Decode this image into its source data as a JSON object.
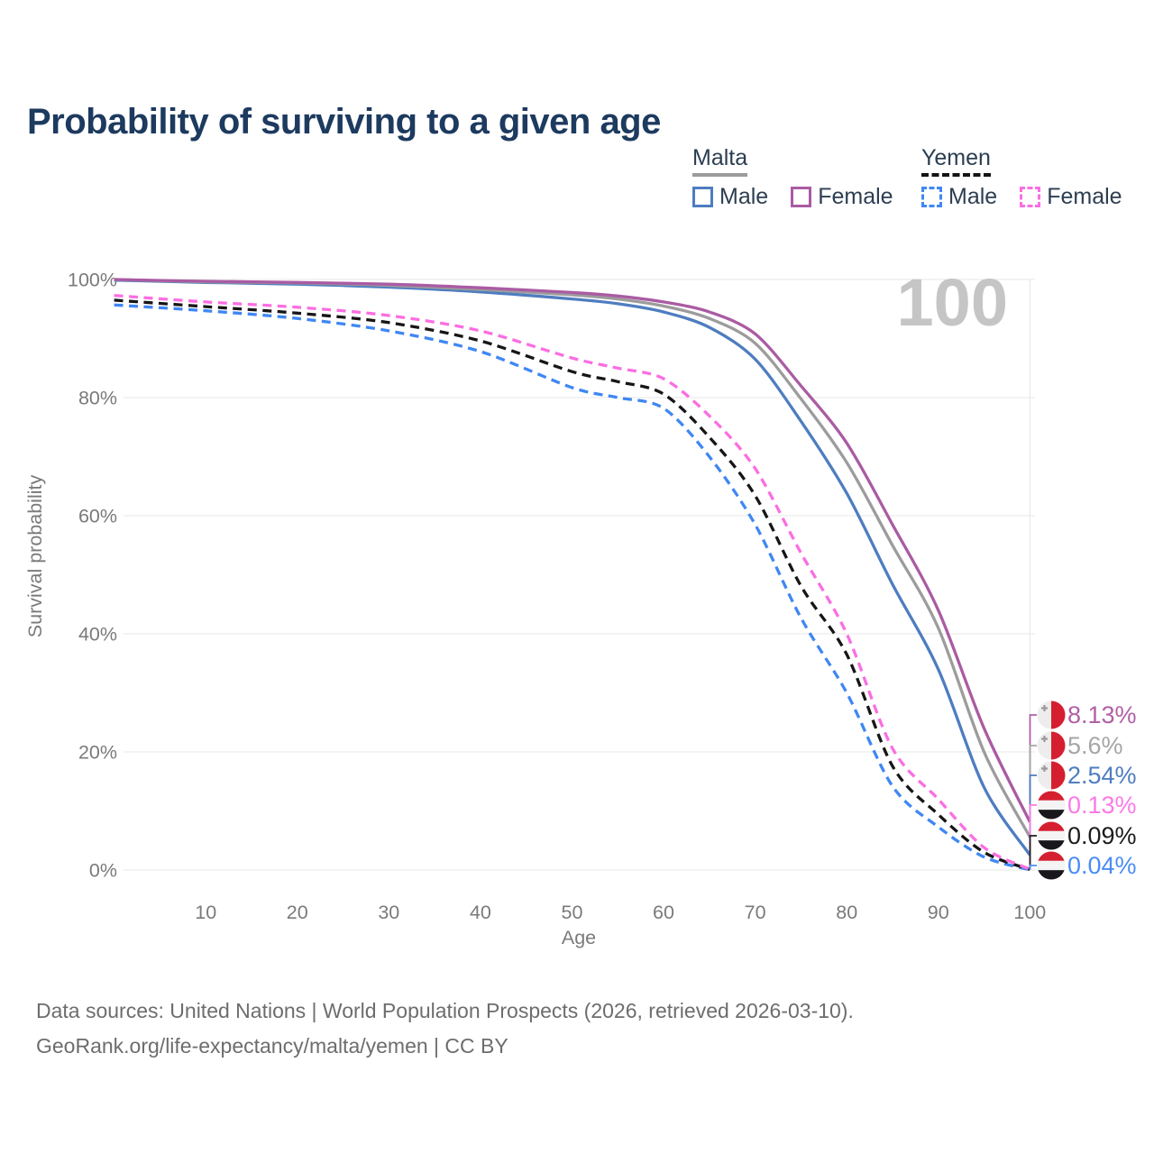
{
  "title": "Probability of surviving to a given age",
  "watermark_hover_age": "100",
  "legend": {
    "groups": [
      {
        "country": "Malta",
        "underline_style": "solid",
        "underline_color": "#9b9b9b",
        "items": [
          {
            "label": "Male",
            "color": "#4e7dc0",
            "dashed": false
          },
          {
            "label": "Female",
            "color": "#aa5ba3",
            "dashed": false
          }
        ]
      },
      {
        "country": "Yemen",
        "underline_style": "dashed",
        "underline_color": "#141414",
        "items": [
          {
            "label": "Male",
            "color": "#3f87f3",
            "dashed": true
          },
          {
            "label": "Female",
            "color": "#fb6ee2",
            "dashed": true
          }
        ]
      }
    ]
  },
  "chart_data": {
    "type": "line",
    "title": "Probability of surviving to a given age",
    "xlabel": "Age",
    "ylabel": "Survival probability",
    "xlim": [
      0,
      100
    ],
    "ylim": [
      0,
      100
    ],
    "grid": "horizontal-only",
    "x_ticks": [
      10,
      20,
      30,
      40,
      50,
      60,
      70,
      80,
      90,
      100
    ],
    "y_ticks": [
      0,
      20,
      40,
      60,
      80,
      100
    ],
    "y_tick_labels": [
      "0%",
      "20%",
      "40%",
      "60%",
      "80%",
      "100%"
    ],
    "ages": [
      0,
      10,
      20,
      30,
      40,
      50,
      55,
      60,
      65,
      70,
      75,
      80,
      85,
      90,
      95,
      100
    ],
    "series": [
      {
        "name": "Malta Male",
        "country": "Malta",
        "sex": "Male",
        "style": "solid",
        "color": "#4e7dc0",
        "values": [
          99.9,
          99.5,
          99.2,
          98.7,
          97.9,
          96.7,
          95.9,
          94.5,
          91.9,
          86.5,
          76.0,
          63.8,
          48.4,
          34.0,
          14.0,
          2.54
        ]
      },
      {
        "name": "Malta (both sexes)",
        "country": "Malta",
        "sex": "All",
        "style": "solid",
        "color": "#9c9c9c",
        "values": [
          100,
          99.6,
          99.4,
          99.0,
          98.3,
          97.4,
          96.7,
          95.5,
          93.4,
          89.2,
          79.8,
          69.0,
          55.0,
          41.0,
          20.0,
          5.6
        ]
      },
      {
        "name": "Malta Female",
        "country": "Malta",
        "sex": "Female",
        "style": "solid",
        "color": "#aa5ba3",
        "values": [
          100,
          99.7,
          99.5,
          99.2,
          98.6,
          97.8,
          97.2,
          96.2,
          94.5,
          90.8,
          82.0,
          72.3,
          58.5,
          44.0,
          24.0,
          8.13
        ]
      },
      {
        "name": "Yemen Male",
        "country": "Yemen",
        "sex": "Male",
        "style": "dashed",
        "color": "#3f87f3",
        "values": [
          95.7,
          94.7,
          93.4,
          91.3,
          87.8,
          81.7,
          80.0,
          78.2,
          70.0,
          58.5,
          42.7,
          30.0,
          14.2,
          7.3,
          2.2,
          0.04
        ]
      },
      {
        "name": "Yemen (both sexes)",
        "country": "Yemen",
        "sex": "All",
        "style": "dashed",
        "color": "#161616",
        "values": [
          96.5,
          95.4,
          94.3,
          92.7,
          89.6,
          84.4,
          82.7,
          80.6,
          73.3,
          63.4,
          48.1,
          36.5,
          17.6,
          9.4,
          3.0,
          0.09
        ]
      },
      {
        "name": "Yemen Female",
        "country": "Yemen",
        "sex": "Female",
        "style": "dashed",
        "color": "#fb6ee2",
        "values": [
          97.3,
          96.2,
          95.3,
          93.9,
          91.3,
          86.7,
          85.0,
          83.2,
          76.9,
          68.0,
          53.7,
          40.0,
          20.6,
          12.0,
          3.8,
          0.13
        ]
      }
    ],
    "end_labels": [
      {
        "text": "8.13%",
        "value": 8.13,
        "series": "Malta Female",
        "flag": "malta",
        "color": "#b15fa6"
      },
      {
        "text": "5.6%",
        "value": 5.6,
        "series": "Malta (both sexes)",
        "flag": "malta",
        "color": "#a6a6a6"
      },
      {
        "text": "2.54%",
        "value": 2.54,
        "series": "Malta Male",
        "flag": "malta",
        "color": "#4e7dc0"
      },
      {
        "text": "0.13%",
        "value": 0.13,
        "series": "Yemen Female",
        "flag": "yemen",
        "color": "#fb7ae6"
      },
      {
        "text": "0.09%",
        "value": 0.09,
        "series": "Yemen (both sexes)",
        "flag": "yemen",
        "color": "#1c1c1c"
      },
      {
        "text": "0.04%",
        "value": 0.04,
        "series": "Yemen Male",
        "flag": "yemen",
        "color": "#4b8cf5"
      }
    ]
  },
  "colors": {
    "title_text": "#1d3a5f",
    "legend_text": "#2c3e52",
    "grid_line": "#e7e7e7",
    "axis_tick_text": "#7a7a7a",
    "watermark": "#c5c5c5",
    "footer_text": "#6d6d6d",
    "flag_red": "#d51f30",
    "flag_malta_white": "#ededed",
    "flag_malta_cross": "#9a9a9a",
    "flag_yemen_white": "#f4f4f4",
    "flag_yemen_black": "#17171c"
  },
  "footer": {
    "line1": "Data sources: United Nations | World Population Prospects (2026, retrieved 2026-03-10).",
    "line2": "GeoRank.org/life-expectancy/malta/yemen | CC BY"
  }
}
